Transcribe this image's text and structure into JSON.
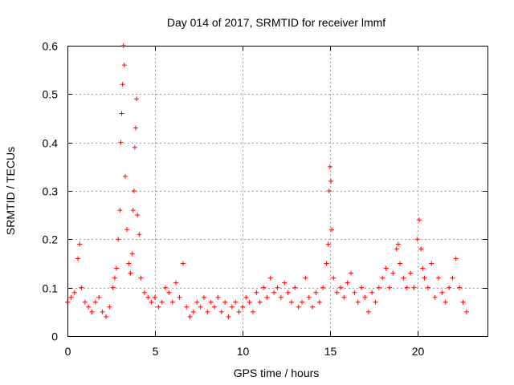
{
  "chart_data": {
    "type": "scatter",
    "title": "Day 014 of 2017, SRMTID for receiver lmmf",
    "xlabel": "GPS time / hours",
    "ylabel": "SRMTID / TECUs",
    "xlim": [
      0,
      24
    ],
    "ylim": [
      0,
      0.6
    ],
    "xticks": [
      0,
      5,
      10,
      15,
      20
    ],
    "xtick_labels": [
      "0",
      "5",
      "10",
      "15",
      "20"
    ],
    "yticks": [
      0,
      0.1,
      0.2,
      0.3,
      0.4,
      0.5,
      0.6
    ],
    "ytick_labels": [
      "0",
      "0.1",
      "0.2",
      "0.3",
      "0.4",
      "0.5",
      "0.6"
    ],
    "grid": true,
    "marker": "plus",
    "color": "#ff0000",
    "series": [
      {
        "name": "SRMTID",
        "x": [
          0.0,
          0.2,
          0.4,
          0.6,
          0.7,
          0.8,
          1.0,
          1.2,
          1.4,
          1.6,
          1.8,
          2.0,
          2.2,
          2.4,
          2.6,
          2.7,
          2.8,
          2.9,
          3.0,
          3.05,
          3.1,
          3.15,
          3.2,
          3.25,
          3.3,
          3.4,
          3.5,
          3.6,
          3.7,
          3.75,
          3.8,
          3.85,
          3.9,
          3.95,
          4.0,
          4.1,
          4.2,
          4.4,
          4.6,
          4.8,
          5.0,
          5.2,
          5.4,
          5.6,
          5.8,
          6.0,
          6.2,
          6.4,
          6.6,
          6.8,
          7.0,
          7.2,
          7.4,
          7.6,
          7.8,
          8.0,
          8.2,
          8.4,
          8.6,
          8.8,
          9.0,
          9.2,
          9.4,
          9.6,
          9.8,
          10.0,
          10.2,
          10.4,
          10.6,
          10.8,
          11.0,
          11.2,
          11.4,
          11.6,
          11.8,
          12.0,
          12.2,
          12.4,
          12.6,
          12.8,
          13.0,
          13.2,
          13.4,
          13.6,
          13.8,
          14.0,
          14.2,
          14.4,
          14.6,
          14.8,
          14.9,
          14.95,
          15.0,
          15.05,
          15.1,
          15.2,
          15.4,
          15.6,
          15.8,
          16.0,
          16.2,
          16.4,
          16.6,
          16.8,
          17.0,
          17.2,
          17.4,
          17.6,
          17.8,
          18.0,
          18.2,
          18.4,
          18.6,
          18.8,
          18.9,
          19.0,
          19.2,
          19.4,
          19.6,
          19.8,
          20.0,
          20.1,
          20.2,
          20.3,
          20.4,
          20.6,
          20.8,
          21.0,
          21.2,
          21.4,
          21.6,
          21.8,
          22.0,
          22.2,
          22.4,
          22.6,
          22.8
        ],
        "y": [
          0.07,
          0.08,
          0.09,
          0.16,
          0.19,
          0.1,
          0.07,
          0.06,
          0.05,
          0.07,
          0.08,
          0.05,
          0.04,
          0.06,
          0.1,
          0.12,
          0.14,
          0.2,
          0.26,
          0.4,
          0.46,
          0.52,
          0.6,
          0.56,
          0.33,
          0.22,
          0.15,
          0.13,
          0.17,
          0.26,
          0.3,
          0.39,
          0.43,
          0.49,
          0.25,
          0.21,
          0.12,
          0.09,
          0.08,
          0.07,
          0.08,
          0.06,
          0.07,
          0.1,
          0.09,
          0.07,
          0.11,
          0.08,
          0.15,
          0.06,
          0.04,
          0.05,
          0.07,
          0.06,
          0.08,
          0.05,
          0.07,
          0.06,
          0.08,
          0.05,
          0.07,
          0.04,
          0.06,
          0.07,
          0.05,
          0.06,
          0.08,
          0.07,
          0.05,
          0.09,
          0.07,
          0.1,
          0.08,
          0.12,
          0.09,
          0.1,
          0.08,
          0.11,
          0.09,
          0.07,
          0.1,
          0.06,
          0.07,
          0.12,
          0.08,
          0.06,
          0.09,
          0.07,
          0.1,
          0.15,
          0.19,
          0.3,
          0.35,
          0.32,
          0.22,
          0.12,
          0.09,
          0.1,
          0.08,
          0.11,
          0.13,
          0.09,
          0.07,
          0.1,
          0.08,
          0.05,
          0.09,
          0.07,
          0.1,
          0.12,
          0.14,
          0.1,
          0.13,
          0.18,
          0.19,
          0.15,
          0.12,
          0.1,
          0.13,
          0.1,
          0.2,
          0.24,
          0.18,
          0.14,
          0.12,
          0.1,
          0.15,
          0.08,
          0.12,
          0.09,
          0.07,
          0.1,
          0.12,
          0.16,
          0.1,
          0.07,
          0.05
        ]
      }
    ]
  }
}
